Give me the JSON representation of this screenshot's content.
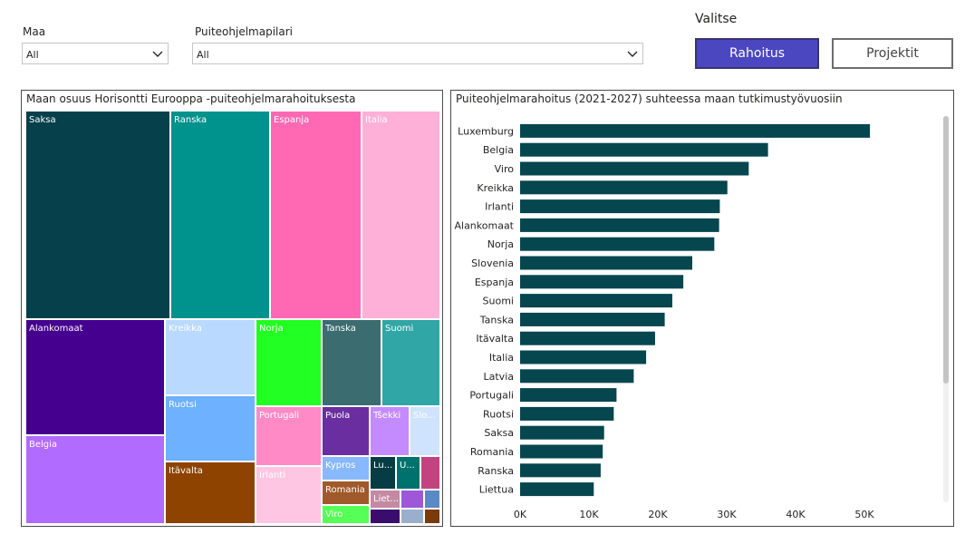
{
  "filters": {
    "maa": {
      "label": "Maa",
      "value": "All"
    },
    "pilari": {
      "label": "Puiteohjelmapilari",
      "value": "All"
    }
  },
  "selector": {
    "label": "Valitse",
    "buttons": [
      {
        "label": "Rahoitus",
        "active": true
      },
      {
        "label": "Projektit",
        "active": false
      }
    ]
  },
  "treemap": {
    "title": "Maan osuus Horisontti Eurooppa -puiteohjelmarahoituksesta",
    "cells": [
      {
        "label": "Saksa",
        "color": "#06404b"
      },
      {
        "label": "Ranska",
        "color": "#00928c"
      },
      {
        "label": "Espanja",
        "color": "#ff69b4"
      },
      {
        "label": "Italia",
        "color": "#ffb0d8"
      },
      {
        "label": "Alankomaat",
        "color": "#45008f"
      },
      {
        "label": "Belgia",
        "color": "#b26bff"
      },
      {
        "label": "Kreikka",
        "color": "#b9d9ff"
      },
      {
        "label": "Ruotsi",
        "color": "#6db1ff"
      },
      {
        "label": "Itävalta",
        "color": "#8e4300"
      },
      {
        "label": "Norja",
        "color": "#22ff22"
      },
      {
        "label": "Tanska",
        "color": "#3a6c70"
      },
      {
        "label": "Suomi",
        "color": "#30a6a6"
      },
      {
        "label": "Portugali",
        "color": "#ff8ac6"
      },
      {
        "label": "Irlanti",
        "color": "#ffc6e3"
      },
      {
        "label": "Puola",
        "color": "#6a2ea0"
      },
      {
        "label": "Tšekki",
        "color": "#c48bff"
      },
      {
        "label": "Slo...",
        "color": "#cfe3ff"
      },
      {
        "label": "Kypros",
        "color": "#88b8ff"
      },
      {
        "label": "Romania",
        "color": "#a0592a"
      },
      {
        "label": "Viro",
        "color": "#55ff55"
      },
      {
        "label": "Lu...",
        "color": "#063c44"
      },
      {
        "label": "U...",
        "color": "#00726e"
      },
      {
        "label": "",
        "color": "#c2437f"
      },
      {
        "label": "Liet...",
        "color": "#c48aa4"
      },
      {
        "label": "",
        "color": "#9e57d8"
      },
      {
        "label": "",
        "color": "#5a8ac4"
      },
      {
        "label": "",
        "color": "#3a0c6e"
      },
      {
        "label": "",
        "color": "#9aafcb"
      },
      {
        "label": "",
        "color": "#7a3a0a"
      }
    ]
  },
  "chart_data": {
    "type": "bar",
    "orientation": "horizontal",
    "title": "Puiteohjelmarahoitus (2021-2027) suhteessa maan tutkimustyövuosiin",
    "categories": [
      "Luxemburg",
      "Belgia",
      "Viro",
      "Kreikka",
      "Irlanti",
      "Alankomaat",
      "Norja",
      "Slovenia",
      "Espanja",
      "Suomi",
      "Tanska",
      "Itävalta",
      "Italia",
      "Latvia",
      "Portugali",
      "Ruotsi",
      "Saksa",
      "Romania",
      "Ranska",
      "Liettua"
    ],
    "values": [
      50800,
      36000,
      33200,
      30100,
      29000,
      28900,
      28200,
      25000,
      23700,
      22100,
      21000,
      19600,
      18300,
      16500,
      14000,
      13600,
      12200,
      12000,
      11700,
      10700
    ],
    "xlim": [
      0,
      55000
    ],
    "xticks": [
      0,
      10000,
      20000,
      30000,
      40000,
      50000
    ],
    "xtick_labels": [
      "0K",
      "10K",
      "20K",
      "30K",
      "40K",
      "50K"
    ],
    "bar_color": "#06464e",
    "grid": false
  }
}
